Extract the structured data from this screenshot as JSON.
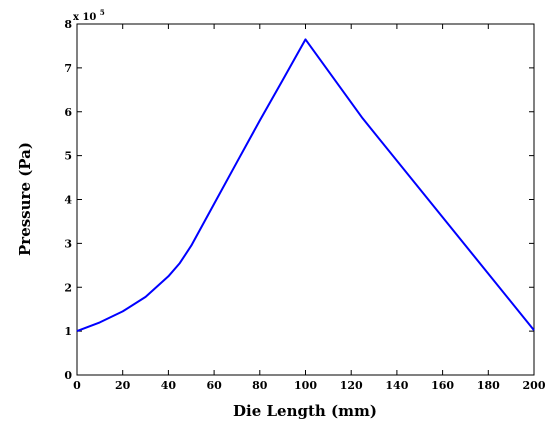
{
  "chart_data": {
    "type": "line",
    "title": "",
    "xlabel": "Die Length (mm)",
    "ylabel": "Pressure (Pa)",
    "xlim": [
      0,
      200
    ],
    "ylim": [
      0,
      8
    ],
    "y_multiplier": {
      "base": "x 10",
      "exponent": "5"
    },
    "xticks": [
      "0",
      "20",
      "40",
      "60",
      "80",
      "100",
      "120",
      "140",
      "160",
      "180",
      "200"
    ],
    "yticks": [
      "0",
      "1",
      "2",
      "3",
      "4",
      "5",
      "6",
      "7",
      "8"
    ],
    "grid": false,
    "series": [
      {
        "color": "#0000ff",
        "x": [
          0,
          10,
          20,
          30,
          40,
          45,
          50,
          60,
          70,
          80,
          90,
          100,
          125,
          200
        ],
        "y": [
          1.0,
          1.2,
          1.45,
          1.78,
          2.25,
          2.55,
          2.95,
          3.9,
          4.85,
          5.8,
          6.72,
          7.65,
          5.85,
          1.02
        ]
      }
    ]
  }
}
